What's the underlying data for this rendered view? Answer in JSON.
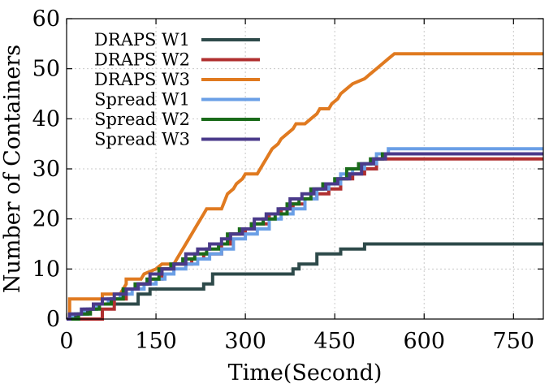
{
  "chart_data": {
    "type": "line",
    "title": "",
    "xlabel": "Time(Second)",
    "ylabel": "Number of Containers",
    "xlim": [
      0,
      800
    ],
    "ylim": [
      0,
      60
    ],
    "xticks": [
      0,
      150,
      300,
      450,
      600,
      750
    ],
    "yticks": [
      0,
      10,
      20,
      30,
      40,
      50,
      60
    ],
    "grid": true,
    "legend_position": "top-left",
    "series": [
      {
        "name": "DRAPS W1",
        "color": "#2e4a4a",
        "points": [
          [
            0,
            0
          ],
          [
            15,
            0
          ],
          [
            15,
            1
          ],
          [
            35,
            1
          ],
          [
            35,
            2
          ],
          [
            50,
            2
          ],
          [
            50,
            3
          ],
          [
            120,
            3
          ],
          [
            120,
            5
          ],
          [
            140,
            5
          ],
          [
            140,
            6
          ],
          [
            230,
            6
          ],
          [
            230,
            7
          ],
          [
            245,
            7
          ],
          [
            245,
            9
          ],
          [
            380,
            9
          ],
          [
            380,
            10
          ],
          [
            390,
            10
          ],
          [
            390,
            11
          ],
          [
            420,
            11
          ],
          [
            420,
            13
          ],
          [
            460,
            13
          ],
          [
            460,
            14
          ],
          [
            500,
            14
          ],
          [
            500,
            15
          ],
          [
            800,
            15
          ]
        ]
      },
      {
        "name": "DRAPS W2",
        "color": "#b03030",
        "points": [
          [
            0,
            0
          ],
          [
            30,
            0
          ],
          [
            60,
            0
          ],
          [
            60,
            2
          ],
          [
            80,
            2
          ],
          [
            80,
            4
          ],
          [
            100,
            4
          ],
          [
            100,
            6
          ],
          [
            120,
            6
          ],
          [
            120,
            7
          ],
          [
            140,
            7
          ],
          [
            140,
            8
          ],
          [
            160,
            8
          ],
          [
            160,
            10
          ],
          [
            180,
            10
          ],
          [
            180,
            11
          ],
          [
            210,
            11
          ],
          [
            210,
            12
          ],
          [
            230,
            12
          ],
          [
            230,
            13
          ],
          [
            260,
            13
          ],
          [
            260,
            15
          ],
          [
            275,
            15
          ],
          [
            275,
            17
          ],
          [
            300,
            17
          ],
          [
            300,
            18
          ],
          [
            310,
            18
          ],
          [
            310,
            19
          ],
          [
            340,
            19
          ],
          [
            340,
            21
          ],
          [
            360,
            21
          ],
          [
            360,
            22
          ],
          [
            380,
            22
          ],
          [
            380,
            23
          ],
          [
            400,
            23
          ],
          [
            400,
            24
          ],
          [
            420,
            24
          ],
          [
            420,
            25
          ],
          [
            440,
            25
          ],
          [
            440,
            26
          ],
          [
            460,
            26
          ],
          [
            460,
            28
          ],
          [
            480,
            28
          ],
          [
            480,
            29
          ],
          [
            500,
            29
          ],
          [
            500,
            30
          ],
          [
            520,
            30
          ],
          [
            520,
            32
          ],
          [
            800,
            32
          ]
        ]
      },
      {
        "name": "DRAPS W3",
        "color": "#e07a20",
        "points": [
          [
            0,
            0
          ],
          [
            5,
            0
          ],
          [
            5,
            4
          ],
          [
            60,
            4
          ],
          [
            60,
            5
          ],
          [
            90,
            5
          ],
          [
            100,
            7
          ],
          [
            100,
            8
          ],
          [
            125,
            8
          ],
          [
            130,
            9
          ],
          [
            150,
            10
          ],
          [
            160,
            11
          ],
          [
            180,
            11
          ],
          [
            185,
            12
          ],
          [
            195,
            14
          ],
          [
            210,
            17
          ],
          [
            220,
            19
          ],
          [
            230,
            21
          ],
          [
            235,
            22
          ],
          [
            260,
            22
          ],
          [
            270,
            25
          ],
          [
            280,
            26
          ],
          [
            285,
            27
          ],
          [
            295,
            28
          ],
          [
            300,
            29
          ],
          [
            320,
            29
          ],
          [
            330,
            31
          ],
          [
            335,
            32
          ],
          [
            345,
            34
          ],
          [
            355,
            35
          ],
          [
            360,
            36
          ],
          [
            370,
            37
          ],
          [
            380,
            38
          ],
          [
            385,
            39
          ],
          [
            400,
            39
          ],
          [
            410,
            40
          ],
          [
            420,
            41
          ],
          [
            425,
            42
          ],
          [
            440,
            42
          ],
          [
            445,
            43
          ],
          [
            455,
            44
          ],
          [
            460,
            45
          ],
          [
            470,
            46
          ],
          [
            480,
            47
          ],
          [
            500,
            48
          ],
          [
            510,
            49
          ],
          [
            520,
            50
          ],
          [
            530,
            51
          ],
          [
            540,
            52
          ],
          [
            550,
            53
          ],
          [
            800,
            53
          ]
        ]
      },
      {
        "name": "Spread W1",
        "color": "#6a9fe6",
        "points": [
          [
            0,
            0
          ],
          [
            10,
            0
          ],
          [
            10,
            1
          ],
          [
            30,
            1
          ],
          [
            30,
            2
          ],
          [
            50,
            2
          ],
          [
            50,
            3
          ],
          [
            70,
            3
          ],
          [
            70,
            4
          ],
          [
            90,
            4
          ],
          [
            90,
            5
          ],
          [
            110,
            5
          ],
          [
            110,
            6
          ],
          [
            130,
            6
          ],
          [
            130,
            7
          ],
          [
            150,
            7
          ],
          [
            150,
            8
          ],
          [
            165,
            8
          ],
          [
            165,
            9
          ],
          [
            180,
            9
          ],
          [
            180,
            10
          ],
          [
            200,
            10
          ],
          [
            200,
            11
          ],
          [
            220,
            11
          ],
          [
            220,
            12
          ],
          [
            240,
            12
          ],
          [
            240,
            13
          ],
          [
            260,
            13
          ],
          [
            260,
            14
          ],
          [
            280,
            14
          ],
          [
            280,
            16
          ],
          [
            300,
            16
          ],
          [
            300,
            17
          ],
          [
            320,
            17
          ],
          [
            320,
            18
          ],
          [
            340,
            18
          ],
          [
            340,
            20
          ],
          [
            360,
            20
          ],
          [
            360,
            21
          ],
          [
            380,
            21
          ],
          [
            380,
            22
          ],
          [
            400,
            22
          ],
          [
            400,
            24
          ],
          [
            420,
            24
          ],
          [
            420,
            26
          ],
          [
            440,
            26
          ],
          [
            440,
            27
          ],
          [
            460,
            27
          ],
          [
            460,
            29
          ],
          [
            480,
            29
          ],
          [
            480,
            30
          ],
          [
            500,
            30
          ],
          [
            500,
            31
          ],
          [
            520,
            31
          ],
          [
            520,
            33
          ],
          [
            540,
            33
          ],
          [
            540,
            34
          ],
          [
            800,
            34
          ]
        ]
      },
      {
        "name": "Spread W2",
        "color": "#1a6b1a",
        "points": [
          [
            0,
            0
          ],
          [
            20,
            0
          ],
          [
            20,
            1
          ],
          [
            40,
            1
          ],
          [
            40,
            2
          ],
          [
            55,
            2
          ],
          [
            55,
            3
          ],
          [
            75,
            3
          ],
          [
            75,
            4
          ],
          [
            95,
            4
          ],
          [
            95,
            6
          ],
          [
            115,
            6
          ],
          [
            115,
            7
          ],
          [
            135,
            7
          ],
          [
            135,
            8
          ],
          [
            155,
            8
          ],
          [
            155,
            10
          ],
          [
            175,
            10
          ],
          [
            175,
            11
          ],
          [
            195,
            11
          ],
          [
            195,
            12
          ],
          [
            215,
            12
          ],
          [
            215,
            13
          ],
          [
            235,
            13
          ],
          [
            235,
            14
          ],
          [
            255,
            14
          ],
          [
            255,
            15
          ],
          [
            270,
            15
          ],
          [
            270,
            17
          ],
          [
            290,
            17
          ],
          [
            290,
            18
          ],
          [
            310,
            18
          ],
          [
            310,
            19
          ],
          [
            330,
            19
          ],
          [
            330,
            20
          ],
          [
            350,
            20
          ],
          [
            350,
            21
          ],
          [
            370,
            21
          ],
          [
            370,
            23
          ],
          [
            390,
            23
          ],
          [
            390,
            24
          ],
          [
            410,
            24
          ],
          [
            410,
            26
          ],
          [
            430,
            26
          ],
          [
            430,
            27
          ],
          [
            450,
            27
          ],
          [
            450,
            28
          ],
          [
            470,
            28
          ],
          [
            470,
            30
          ],
          [
            490,
            30
          ],
          [
            490,
            31
          ],
          [
            510,
            31
          ],
          [
            510,
            32
          ],
          [
            530,
            32
          ],
          [
            530,
            33
          ],
          [
            800,
            33
          ]
        ]
      },
      {
        "name": "Spread W3",
        "color": "#4a3a8a",
        "points": [
          [
            0,
            0
          ],
          [
            5,
            0
          ],
          [
            5,
            1
          ],
          [
            25,
            1
          ],
          [
            25,
            2
          ],
          [
            45,
            2
          ],
          [
            45,
            3
          ],
          [
            60,
            3
          ],
          [
            60,
            4
          ],
          [
            80,
            4
          ],
          [
            80,
            5
          ],
          [
            100,
            5
          ],
          [
            100,
            6
          ],
          [
            120,
            6
          ],
          [
            120,
            7
          ],
          [
            140,
            7
          ],
          [
            140,
            9
          ],
          [
            160,
            9
          ],
          [
            160,
            10
          ],
          [
            180,
            10
          ],
          [
            180,
            11
          ],
          [
            200,
            11
          ],
          [
            200,
            13
          ],
          [
            220,
            13
          ],
          [
            220,
            14
          ],
          [
            240,
            14
          ],
          [
            240,
            15
          ],
          [
            260,
            15
          ],
          [
            260,
            16
          ],
          [
            275,
            16
          ],
          [
            275,
            17
          ],
          [
            295,
            17
          ],
          [
            295,
            18
          ],
          [
            315,
            18
          ],
          [
            315,
            20
          ],
          [
            335,
            20
          ],
          [
            335,
            21
          ],
          [
            355,
            21
          ],
          [
            355,
            22
          ],
          [
            375,
            22
          ],
          [
            375,
            24
          ],
          [
            395,
            24
          ],
          [
            395,
            25
          ],
          [
            415,
            25
          ],
          [
            415,
            26
          ],
          [
            435,
            26
          ],
          [
            435,
            27
          ],
          [
            455,
            27
          ],
          [
            455,
            28
          ],
          [
            475,
            28
          ],
          [
            475,
            29
          ],
          [
            495,
            29
          ],
          [
            495,
            31
          ],
          [
            515,
            31
          ],
          [
            515,
            32
          ],
          [
            535,
            32
          ],
          [
            535,
            33
          ],
          [
            800,
            33
          ]
        ]
      }
    ]
  }
}
